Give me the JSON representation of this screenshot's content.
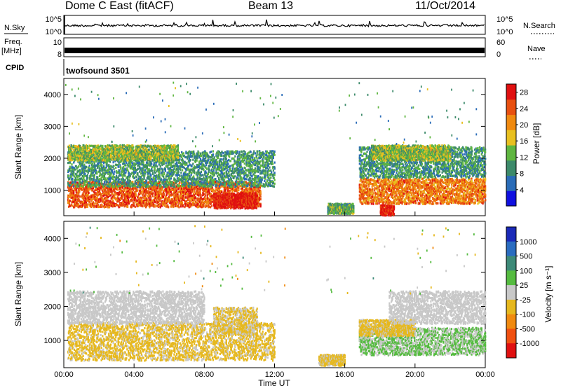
{
  "header": {
    "station": "Dome C East (fitACF)",
    "beam": "Beam 13",
    "date": "11/Oct/2014"
  },
  "strip_panels": {
    "nsky_label": "N.Sky",
    "nsky_ticks": [
      "10^5",
      "10^0"
    ],
    "nsearch_label": "N.Search",
    "nsearch_ticks": [
      "10^5",
      "10^0"
    ],
    "freq_label_top": "Freq.",
    "freq_label_unit": "[MHz]",
    "freq_ticks": [
      "10",
      "8"
    ],
    "nave_label": "Nave",
    "nave_ticks": [
      "60",
      "0"
    ],
    "cpid_label": "CPID",
    "cpid_value": "twofsound 3501"
  },
  "colors": {
    "power_scale": [
      "#1010e0",
      "#2a6cb8",
      "#3c8a6a",
      "#5fb640",
      "#e8c020",
      "#f08a10",
      "#e85010",
      "#e01010"
    ],
    "velocity_scale": [
      "#1a2ab8",
      "#2a6cc0",
      "#3d8a78",
      "#55bb40",
      "#c8c8c8",
      "#e6b81e",
      "#f08a10",
      "#f05010",
      "#e01010"
    ]
  },
  "chart_data": [
    {
      "type": "heatmap",
      "panel": "power",
      "ylabel": "Slant Range [km]",
      "y_ticks": [
        "1000",
        "2000",
        "3000",
        "4000"
      ],
      "ylim": [
        200,
        4500
      ],
      "x_ticks": [
        "00:00",
        "04:00",
        "08:00",
        "12:00",
        "16:00",
        "20:00",
        "00:00"
      ],
      "xlim": [
        0,
        24
      ],
      "colorbar": {
        "label": "Power [dB]",
        "ticks": [
          "4",
          "8",
          "12",
          "16",
          "20",
          "24",
          "28"
        ],
        "range": [
          0,
          30
        ]
      },
      "bands": [
        {
          "t0": 0.2,
          "t1": 11.2,
          "r_center": 900,
          "r_width": 500,
          "value": 24
        },
        {
          "t0": 0.2,
          "t1": 12.0,
          "r_center": 1700,
          "r_width": 700,
          "value": 10
        },
        {
          "t0": 0.2,
          "t1": 6.5,
          "r_center": 2200,
          "r_width": 300,
          "value": 14
        },
        {
          "t0": 8.5,
          "t1": 11.0,
          "r_center": 700,
          "r_width": 300,
          "value": 28
        },
        {
          "t0": 16.8,
          "t1": 24.0,
          "r_center": 1000,
          "r_width": 500,
          "value": 22
        },
        {
          "t0": 16.8,
          "t1": 24.0,
          "r_center": 1900,
          "r_width": 600,
          "value": 10
        },
        {
          "t0": 17.5,
          "t1": 22.0,
          "r_center": 2200,
          "r_width": 300,
          "value": 14
        },
        {
          "t0": 18.0,
          "t1": 18.8,
          "r_center": 400,
          "r_width": 200,
          "value": 28
        },
        {
          "t0": 15.0,
          "t1": 16.5,
          "r_center": 450,
          "r_width": 200,
          "value": 12
        }
      ]
    },
    {
      "type": "heatmap",
      "panel": "velocity",
      "ylabel": "Slant Range [km]",
      "y_ticks": [
        "1000",
        "2000",
        "3000",
        "4000"
      ],
      "ylim": [
        200,
        4500
      ],
      "x_ticks": [
        "00:00",
        "04:00",
        "08:00",
        "12:00",
        "16:00",
        "20:00",
        "00:00"
      ],
      "xlim": [
        0,
        24
      ],
      "xlabel": "Time UT",
      "colorbar": {
        "label": "Velocity [m s⁻¹]",
        "ticks": [
          "1000",
          "500",
          "100",
          "25",
          "-25",
          "-100",
          "-500",
          "-1000"
        ],
        "range": [
          -1000,
          1000
        ]
      },
      "bands": [
        {
          "t0": 0.2,
          "t1": 12.0,
          "r_center": 1000,
          "r_width": 700,
          "value": -150
        },
        {
          "t0": 0.2,
          "t1": 8.0,
          "r_center": 2000,
          "r_width": 600,
          "value": 0
        },
        {
          "t0": 8.5,
          "t1": 11.0,
          "r_center": 1600,
          "r_width": 500,
          "value": -120
        },
        {
          "t0": 16.8,
          "t1": 24.0,
          "r_center": 1000,
          "r_width": 500,
          "value": 120
        },
        {
          "t0": 16.8,
          "t1": 20.0,
          "r_center": 1400,
          "r_width": 300,
          "value": -150
        },
        {
          "t0": 18.5,
          "t1": 24.0,
          "r_center": 2000,
          "r_width": 600,
          "value": 0
        },
        {
          "t0": 14.5,
          "t1": 16.0,
          "r_center": 450,
          "r_width": 200,
          "value": -150
        }
      ]
    }
  ]
}
